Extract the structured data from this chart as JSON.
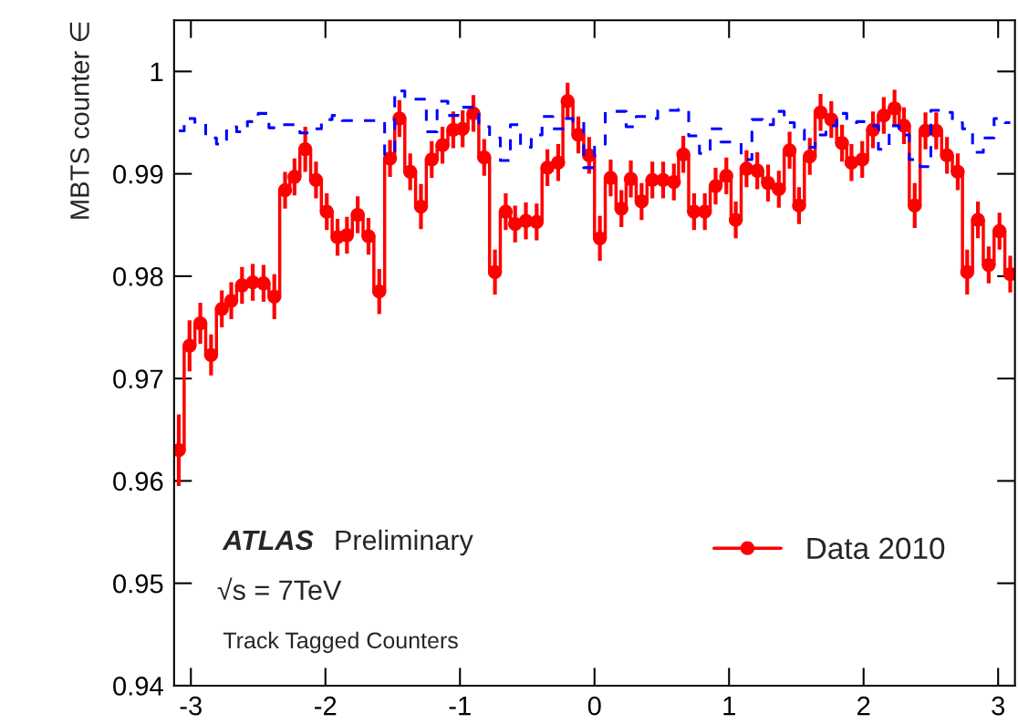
{
  "chart_data": {
    "type": "step",
    "ylabel": "MBTS counter ∈",
    "x": [
      -3.09,
      -3.01,
      -2.93,
      -2.85,
      -2.77,
      -2.7,
      -2.62,
      -2.54,
      -2.46,
      -2.38,
      -2.3,
      -2.23,
      -2.15,
      -2.07,
      -1.99,
      -1.91,
      -1.84,
      -1.76,
      -1.68,
      -1.6,
      -1.52,
      -1.45,
      -1.37,
      -1.29,
      -1.21,
      -1.13,
      -1.05,
      -0.98,
      -0.9,
      -0.82,
      -0.74,
      -0.66,
      -0.59,
      -0.51,
      -0.43,
      -0.35,
      -0.27,
      -0.2,
      -0.12,
      -0.04,
      0.04,
      0.12,
      0.2,
      0.27,
      0.35,
      0.43,
      0.51,
      0.59,
      0.66,
      0.74,
      0.82,
      0.9,
      0.98,
      1.05,
      1.13,
      1.21,
      1.29,
      1.37,
      1.45,
      1.52,
      1.6,
      1.68,
      1.76,
      1.84,
      1.91,
      1.99,
      2.07,
      2.15,
      2.23,
      2.3,
      2.38,
      2.46,
      2.54,
      2.62,
      2.7,
      2.77,
      2.85,
      2.93,
      3.01,
      3.09
    ],
    "series": [
      {
        "name": "Data 2010",
        "color": "#ff0000",
        "marker": "circle",
        "line_style": "solid",
        "values": [
          0.963,
          0.9732,
          0.9754,
          0.9723,
          0.9768,
          0.9776,
          0.9791,
          0.9794,
          0.9793,
          0.978,
          0.9884,
          0.9897,
          0.9924,
          0.9894,
          0.9863,
          0.9838,
          0.984,
          0.986,
          0.9839,
          0.9785,
          0.9915,
          0.9954,
          0.9902,
          0.9868,
          0.9914,
          0.9928,
          0.9943,
          0.9944,
          0.9959,
          0.9916,
          0.9804,
          0.9863,
          0.9851,
          0.9854,
          0.9853,
          0.9906,
          0.9911,
          0.9971,
          0.9938,
          0.9918,
          0.9837,
          0.9896,
          0.9866,
          0.9895,
          0.9873,
          0.9894,
          0.9894,
          0.9892,
          0.9919,
          0.9863,
          0.9863,
          0.9888,
          0.9898,
          0.9855,
          0.9905,
          0.9903,
          0.9891,
          0.9885,
          0.9923,
          0.9869,
          0.9917,
          0.996,
          0.9953,
          0.993,
          0.9911,
          0.9914,
          0.9943,
          0.9957,
          0.9964,
          0.9947,
          0.9869,
          0.9942,
          0.9942,
          0.9918,
          0.9902,
          0.9804,
          0.9855,
          0.9811,
          0.9844,
          0.9802
        ],
        "errors": [
          0.0035,
          0.0025,
          0.002,
          0.002,
          0.0018,
          0.0018,
          0.0018,
          0.0018,
          0.0018,
          0.0022,
          0.0018,
          0.0018,
          0.0022,
          0.0018,
          0.0018,
          0.0018,
          0.0018,
          0.0018,
          0.0018,
          0.0022,
          0.0018,
          0.0018,
          0.0018,
          0.0022,
          0.0018,
          0.0018,
          0.0018,
          0.0018,
          0.0018,
          0.0018,
          0.0022,
          0.0018,
          0.0018,
          0.0018,
          0.0018,
          0.0018,
          0.0018,
          0.0018,
          0.0018,
          0.0018,
          0.0022,
          0.0018,
          0.0018,
          0.0018,
          0.0018,
          0.0018,
          0.0018,
          0.0018,
          0.0018,
          0.0018,
          0.0018,
          0.0018,
          0.0018,
          0.0018,
          0.0018,
          0.0018,
          0.0018,
          0.0018,
          0.0018,
          0.0018,
          0.0018,
          0.0018,
          0.0018,
          0.0018,
          0.0018,
          0.0018,
          0.0018,
          0.0018,
          0.0018,
          0.0018,
          0.0022,
          0.0018,
          0.0018,
          0.0018,
          0.0018,
          0.0022,
          0.0018,
          0.0018,
          0.0018,
          0.0018
        ]
      },
      {
        "color": "#0000ff",
        "marker": "none",
        "line_style": "dashed",
        "values": [
          0.9942,
          0.9954,
          0.9949,
          0.9935,
          0.9929,
          0.9946,
          0.9941,
          0.9951,
          0.9959,
          0.9945,
          0.9948,
          0.9948,
          0.994,
          0.9944,
          0.9953,
          0.9957,
          0.9952,
          0.9952,
          0.9952,
          0.9952,
          0.9919,
          0.9981,
          0.9973,
          0.9973,
          0.9941,
          0.9971,
          0.9957,
          0.9965,
          0.9965,
          0.9946,
          0.9935,
          0.9913,
          0.9948,
          0.9926,
          0.9938,
          0.9956,
          0.9944,
          0.9954,
          0.9951,
          0.9906,
          0.9929,
          0.9961,
          0.9961,
          0.9946,
          0.9956,
          0.9954,
          0.9962,
          0.9962,
          0.9963,
          0.9937,
          0.992,
          0.9944,
          0.9931,
          0.9931,
          0.9914,
          0.9953,
          0.9948,
          0.9961,
          0.995,
          0.9943,
          0.9926,
          0.9938,
          0.9947,
          0.9959,
          0.995,
          0.9951,
          0.9947,
          0.9924,
          0.9947,
          0.9938,
          0.9914,
          0.9907,
          0.9962,
          0.996,
          0.995,
          0.9944,
          0.9921,
          0.9935,
          0.9954,
          0.995
        ]
      }
    ],
    "xlim": [
      -3.125,
      3.125
    ],
    "xticks": [
      -3,
      -2,
      -1,
      0,
      1,
      2,
      3
    ],
    "ylim": [
      0.94,
      1.005
    ],
    "yticks": [
      0.94,
      0.95,
      0.96,
      0.97,
      0.98,
      0.99,
      1
    ],
    "grid": false,
    "legend": "bottom right",
    "annotations": [
      "ATLAS",
      "Preliminary",
      "√s = 7TeV",
      "Track Tagged Counters"
    ]
  }
}
